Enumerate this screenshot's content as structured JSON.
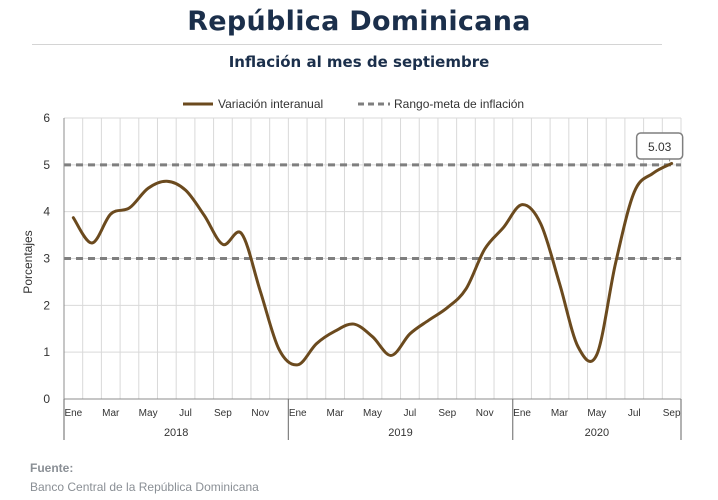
{
  "title": "República Dominicana",
  "subtitle": "Inflación al mes de septiembre",
  "source": {
    "label": "Fuente:",
    "text": "Banco Central de la República Dominicana"
  },
  "chart_data": {
    "type": "line",
    "title": "República Dominicana",
    "subtitle": "Inflación al mes de septiembre",
    "xlabel": "",
    "ylabel": "Porcentajes",
    "ylim": [
      0,
      6
    ],
    "yticks": [
      "0",
      "1",
      "2",
      "3",
      "4",
      "5",
      "6"
    ],
    "grid": true,
    "legend_position": "top",
    "month_labels": [
      "Ene",
      "Mar",
      "May",
      "Jul",
      "Sep",
      "Nov",
      "Ene",
      "Mar",
      "May",
      "Jul",
      "Sep",
      "Nov",
      "Ene",
      "Mar",
      "May",
      "Jul",
      "Sep"
    ],
    "years": [
      "2018",
      "2019",
      "2020"
    ],
    "x": [
      "2018-01",
      "2018-02",
      "2018-03",
      "2018-04",
      "2018-05",
      "2018-06",
      "2018-07",
      "2018-08",
      "2018-09",
      "2018-10",
      "2018-11",
      "2018-12",
      "2019-01",
      "2019-02",
      "2019-03",
      "2019-04",
      "2019-05",
      "2019-06",
      "2019-07",
      "2019-08",
      "2019-09",
      "2019-10",
      "2019-11",
      "2019-12",
      "2020-01",
      "2020-02",
      "2020-03",
      "2020-04",
      "2020-05",
      "2020-06",
      "2020-07",
      "2020-08",
      "2020-09"
    ],
    "series": [
      {
        "name": "Variación interanual",
        "color": "#6b4a1e",
        "style": "solid",
        "values": [
          3.87,
          3.33,
          3.95,
          4.08,
          4.5,
          4.65,
          4.46,
          3.92,
          3.3,
          3.53,
          2.3,
          1.06,
          0.73,
          1.18,
          1.45,
          1.6,
          1.33,
          0.93,
          1.39,
          1.68,
          1.95,
          2.35,
          3.2,
          3.66,
          4.15,
          3.74,
          2.47,
          1.11,
          0.95,
          2.9,
          4.42,
          4.82,
          5.03
        ]
      },
      {
        "name": "Rango-meta de inflación",
        "color": "#7f7f7f",
        "style": "dashed",
        "bounds": [
          3,
          5
        ]
      }
    ],
    "annotations": [
      {
        "x": "2020-09",
        "text": "5.03"
      }
    ]
  }
}
